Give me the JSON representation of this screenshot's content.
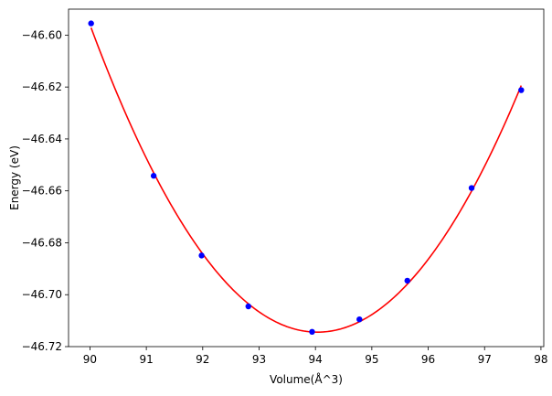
{
  "chart_data": {
    "type": "scatter",
    "title": "",
    "xlabel": "Volume(Å^3)",
    "ylabel": "Energy (eV)",
    "xlim": [
      89.62,
      98.05
    ],
    "ylim": [
      -46.72,
      -46.59
    ],
    "xticks": [
      90,
      91,
      92,
      93,
      94,
      95,
      96,
      97,
      98
    ],
    "xtick_labels": [
      "90",
      "91",
      "92",
      "93",
      "94",
      "95",
      "96",
      "97",
      "98"
    ],
    "yticks": [
      -46.6,
      -46.62,
      -46.64,
      -46.66,
      -46.68,
      -46.7,
      -46.72
    ],
    "ytick_labels": [
      "−46.60",
      "−46.62",
      "−46.64",
      "−46.66",
      "−46.68",
      "−46.70",
      "−46.72"
    ],
    "grid": false,
    "series": [
      {
        "kind": "points",
        "color": "#0000ff",
        "x": [
          90.02,
          91.13,
          91.98,
          92.81,
          93.94,
          94.78,
          95.63,
          96.77,
          97.65
        ],
        "y": [
          -46.5955,
          -46.6542,
          -46.6849,
          -46.7045,
          -46.7143,
          -46.7095,
          -46.6946,
          -46.6589,
          -46.6212
        ]
      },
      {
        "kind": "fit-curve",
        "color": "#ff0000",
        "x": [
          90.02,
          91.13,
          91.98,
          92.81,
          93.94,
          94.78,
          95.63,
          96.77,
          97.65
        ],
        "y": [
          -46.5955,
          -46.6542,
          -46.6849,
          -46.7045,
          -46.7143,
          -46.7095,
          -46.6946,
          -46.6589,
          -46.6212
        ]
      }
    ]
  }
}
